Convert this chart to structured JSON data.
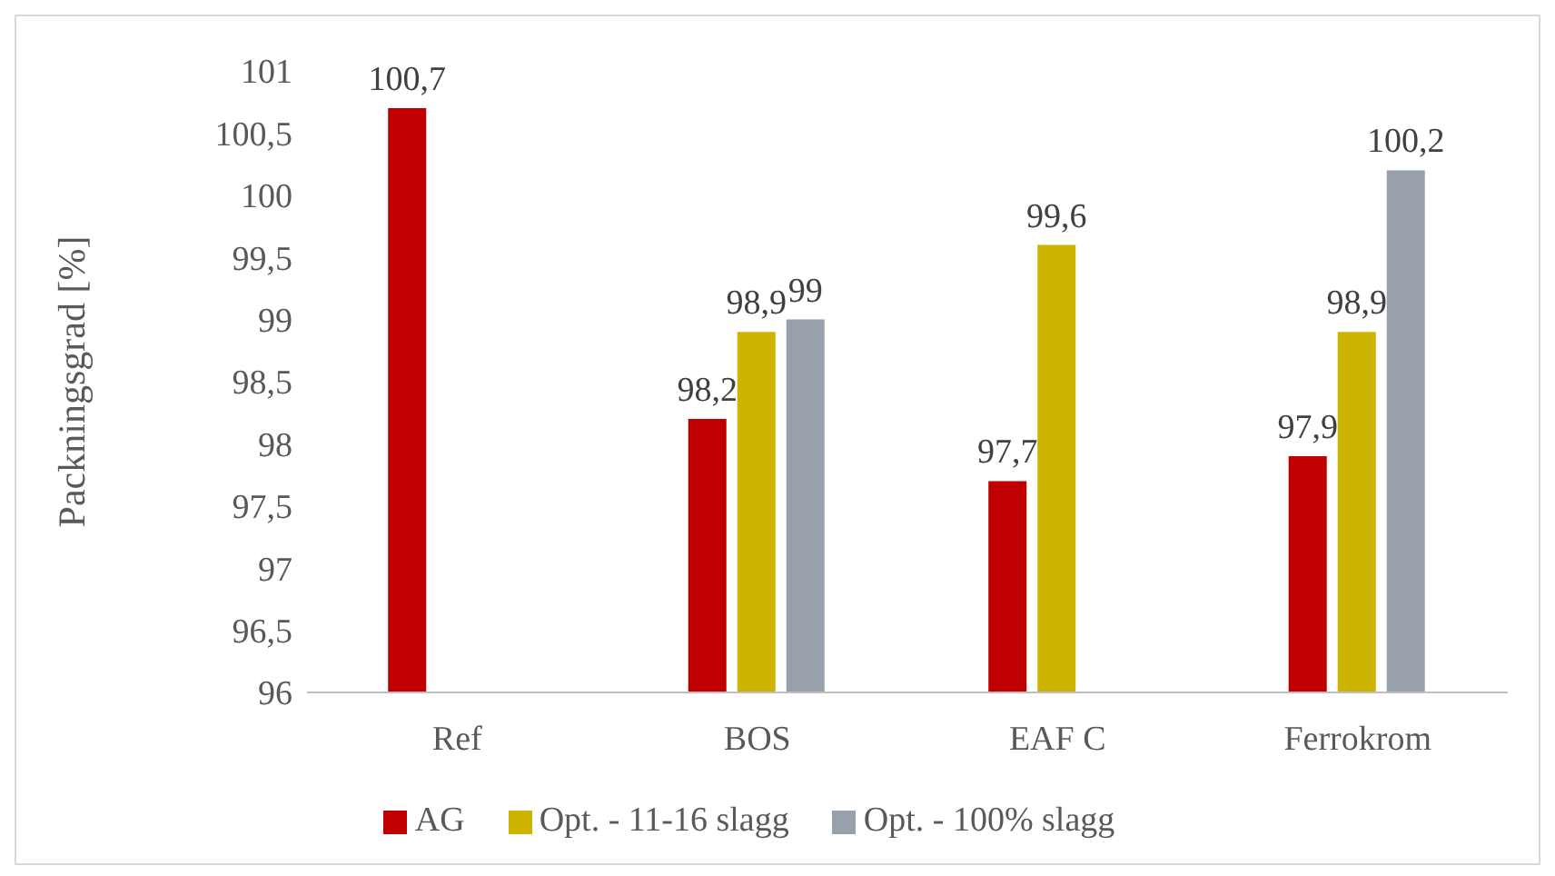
{
  "chart_data": {
    "type": "bar",
    "ylabel": "Packningsgrad [%]",
    "categories": [
      "Ref",
      "BOS",
      "EAF C",
      "Ferrokrom"
    ],
    "series": [
      {
        "name": "AG",
        "color": "#c00000",
        "values": [
          100.7,
          98.2,
          97.7,
          97.9
        ],
        "value_labels": [
          "100,7",
          "98,2",
          "97,7",
          "97,9"
        ]
      },
      {
        "name": "Opt. - 11-16 slagg",
        "color": "#ccb400",
        "values": [
          null,
          98.9,
          99.6,
          98.9
        ],
        "value_labels": [
          null,
          "98,9",
          "99,6",
          "98,9"
        ]
      },
      {
        "name": "Opt. - 100% slagg",
        "color": "#98a0ac",
        "values": [
          null,
          99,
          null,
          100.2
        ],
        "value_labels": [
          null,
          "99",
          null,
          "100,2"
        ]
      }
    ],
    "ylim": [
      96,
      101
    ],
    "yticks": [
      96,
      {
        "value": 96.5,
        "label": "96,5"
      },
      97,
      {
        "value": 97.5,
        "label": "97,5"
      },
      98,
      {
        "value": 98.5,
        "label": "98,5"
      },
      99,
      {
        "value": 99.5,
        "label": "99,5"
      },
      100,
      {
        "value": 100.5,
        "label": "100,5"
      },
      101
    ],
    "grid": false,
    "legend": "bottom"
  }
}
